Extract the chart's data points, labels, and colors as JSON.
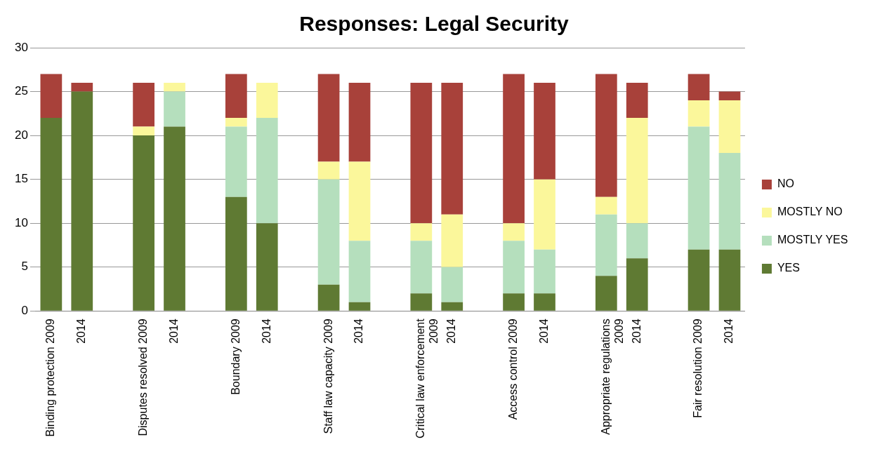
{
  "chart_data": {
    "type": "bar",
    "title": "Responses: Legal Security",
    "stacked": true,
    "categories": [
      "Binding protection 2009",
      "2014",
      null,
      "Disputes resolved 2009",
      "2014",
      null,
      "Boundary 2009",
      "2014",
      null,
      "Staff law capacity 2009",
      "2014",
      null,
      "Critical law enforcement 2009",
      "2014",
      null,
      "Access control 2009",
      "2014",
      null,
      "Appropriate regulations 2009",
      "2014",
      null,
      "Fair resolution 2009",
      "2014"
    ],
    "series": [
      {
        "name": "YES",
        "color": "#5f7a33",
        "values": [
          22,
          25,
          null,
          20,
          21,
          null,
          13,
          10,
          null,
          3,
          1,
          null,
          2,
          1,
          null,
          2,
          2,
          null,
          4,
          6,
          null,
          7,
          7
        ]
      },
      {
        "name": "MOSTLY YES",
        "color": "#b5dfbd",
        "values": [
          0,
          0,
          null,
          0,
          4,
          null,
          8,
          12,
          null,
          12,
          7,
          null,
          6,
          4,
          null,
          6,
          5,
          null,
          7,
          4,
          null,
          14,
          11
        ]
      },
      {
        "name": "MOSTLY NO",
        "color": "#fbf79b",
        "values": [
          0,
          0,
          null,
          1,
          1,
          null,
          1,
          4,
          null,
          2,
          9,
          null,
          2,
          6,
          null,
          2,
          8,
          null,
          2,
          12,
          null,
          3,
          6
        ]
      },
      {
        "name": "NO",
        "color": "#a8413a",
        "values": [
          5,
          1,
          null,
          5,
          0,
          null,
          5,
          0,
          null,
          10,
          9,
          null,
          16,
          15,
          null,
          17,
          11,
          null,
          14,
          4,
          null,
          3,
          1
        ]
      }
    ],
    "ylim": [
      0,
      30
    ],
    "yticks": [
      0,
      5,
      10,
      15,
      20,
      25,
      30
    ],
    "grid": "y",
    "legend": "right"
  }
}
